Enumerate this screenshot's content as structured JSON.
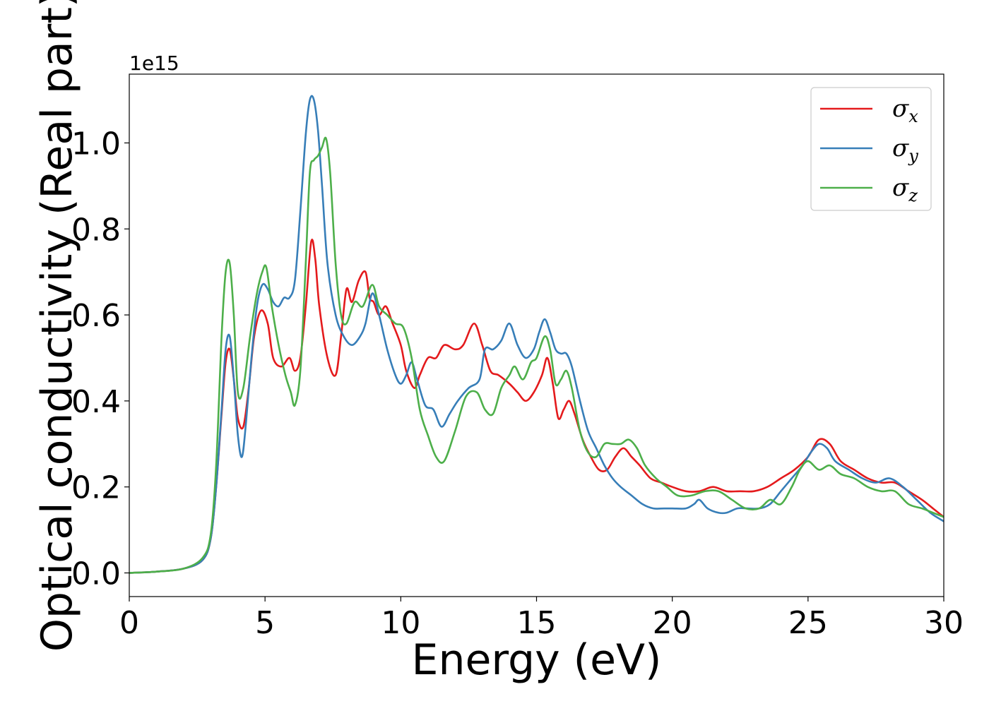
{
  "chart_data": {
    "type": "line",
    "title": "",
    "xlabel": "Energy (eV)",
    "ylabel": "Optical conductivity (Real part)",
    "y_offset_text": "1e15",
    "y_scale": 1000000000000000.0,
    "xlim": [
      0,
      30
    ],
    "ylim": [
      -0.055,
      1.16
    ],
    "xticks": [
      0,
      5,
      10,
      15,
      20,
      25,
      30
    ],
    "xtick_labels": [
      "0",
      "5",
      "10",
      "15",
      "20",
      "25",
      "30"
    ],
    "yticks": [
      0.0,
      0.2,
      0.4,
      0.6,
      0.8,
      1.0
    ],
    "ytick_labels": [
      "0.0",
      "0.2",
      "0.4",
      "0.6",
      "0.8",
      "1.0"
    ],
    "grid": false,
    "legend_position": "top-right",
    "series": [
      {
        "name": "σx",
        "legend_symbol": "σ",
        "legend_sub": "x",
        "color": "#e41a1c",
        "x": [
          0,
          1,
          2,
          2.7,
          3.0,
          3.2,
          3.4,
          3.55,
          3.7,
          3.85,
          4.0,
          4.2,
          4.4,
          4.6,
          4.85,
          5.1,
          5.3,
          5.6,
          5.9,
          6.1,
          6.3,
          6.5,
          6.7,
          6.85,
          7.0,
          7.3,
          7.6,
          7.8,
          8.0,
          8.2,
          8.45,
          8.7,
          8.85,
          9.0,
          9.2,
          9.45,
          9.7,
          10.0,
          10.2,
          10.5,
          10.7,
          11.0,
          11.3,
          11.6,
          12.0,
          12.3,
          12.7,
          13.0,
          13.3,
          13.6,
          14.0,
          14.3,
          14.6,
          14.9,
          15.2,
          15.4,
          15.6,
          15.8,
          16.0,
          16.2,
          16.4,
          16.7,
          17.0,
          17.3,
          17.6,
          17.9,
          18.2,
          18.5,
          18.8,
          19.2,
          19.6,
          20.0,
          20.5,
          21.0,
          21.5,
          22.0,
          22.5,
          23.0,
          23.5,
          24.0,
          24.5,
          25.0,
          25.4,
          25.8,
          26.2,
          26.7,
          27.2,
          27.7,
          28.2,
          28.7,
          29.2,
          29.6,
          30.0
        ],
        "y": [
          0.0,
          0.003,
          0.01,
          0.03,
          0.08,
          0.2,
          0.37,
          0.49,
          0.52,
          0.45,
          0.36,
          0.34,
          0.43,
          0.55,
          0.61,
          0.58,
          0.5,
          0.48,
          0.5,
          0.47,
          0.5,
          0.62,
          0.77,
          0.73,
          0.62,
          0.5,
          0.46,
          0.55,
          0.66,
          0.63,
          0.68,
          0.7,
          0.64,
          0.63,
          0.6,
          0.62,
          0.58,
          0.53,
          0.47,
          0.43,
          0.46,
          0.5,
          0.5,
          0.53,
          0.52,
          0.53,
          0.58,
          0.53,
          0.47,
          0.46,
          0.44,
          0.42,
          0.4,
          0.42,
          0.46,
          0.5,
          0.44,
          0.36,
          0.38,
          0.4,
          0.37,
          0.31,
          0.27,
          0.24,
          0.24,
          0.27,
          0.29,
          0.27,
          0.25,
          0.22,
          0.21,
          0.2,
          0.19,
          0.19,
          0.2,
          0.19,
          0.19,
          0.19,
          0.2,
          0.22,
          0.24,
          0.27,
          0.31,
          0.3,
          0.26,
          0.24,
          0.22,
          0.21,
          0.21,
          0.19,
          0.17,
          0.15,
          0.13
        ]
      },
      {
        "name": "σy",
        "legend_symbol": "σ",
        "legend_sub": "y",
        "color": "#377eb8",
        "x": [
          0,
          1,
          2,
          2.7,
          3.0,
          3.2,
          3.4,
          3.55,
          3.7,
          3.85,
          4.0,
          4.15,
          4.3,
          4.5,
          4.7,
          4.9,
          5.1,
          5.3,
          5.5,
          5.7,
          5.9,
          6.1,
          6.3,
          6.5,
          6.65,
          6.8,
          6.95,
          7.1,
          7.3,
          7.6,
          7.9,
          8.2,
          8.5,
          8.7,
          8.95,
          9.2,
          9.5,
          9.8,
          10.0,
          10.2,
          10.4,
          10.6,
          10.9,
          11.2,
          11.5,
          11.8,
          12.1,
          12.5,
          12.9,
          13.1,
          13.4,
          13.7,
          14.0,
          14.3,
          14.6,
          14.9,
          15.1,
          15.3,
          15.5,
          15.7,
          15.9,
          16.1,
          16.3,
          16.6,
          16.9,
          17.2,
          17.5,
          17.8,
          18.1,
          18.5,
          18.9,
          19.3,
          19.7,
          20.0,
          20.5,
          20.8,
          21.0,
          21.3,
          21.7,
          22.0,
          22.4,
          22.8,
          23.2,
          23.6,
          24.0,
          24.4,
          24.8,
          25.1,
          25.4,
          25.7,
          26.0,
          26.5,
          27.0,
          27.5,
          28.0,
          28.5,
          29.0,
          29.5,
          30.0
        ],
        "y": [
          0.0,
          0.003,
          0.01,
          0.03,
          0.08,
          0.2,
          0.38,
          0.52,
          0.55,
          0.45,
          0.32,
          0.27,
          0.35,
          0.5,
          0.62,
          0.67,
          0.66,
          0.63,
          0.62,
          0.64,
          0.64,
          0.68,
          0.84,
          1.02,
          1.1,
          1.1,
          1.03,
          0.9,
          0.72,
          0.6,
          0.55,
          0.53,
          0.55,
          0.58,
          0.65,
          0.6,
          0.52,
          0.46,
          0.44,
          0.46,
          0.49,
          0.45,
          0.39,
          0.38,
          0.34,
          0.37,
          0.4,
          0.43,
          0.45,
          0.52,
          0.52,
          0.54,
          0.58,
          0.53,
          0.5,
          0.52,
          0.56,
          0.59,
          0.56,
          0.52,
          0.51,
          0.51,
          0.48,
          0.4,
          0.33,
          0.29,
          0.25,
          0.22,
          0.2,
          0.18,
          0.16,
          0.15,
          0.15,
          0.15,
          0.15,
          0.16,
          0.17,
          0.15,
          0.14,
          0.14,
          0.15,
          0.15,
          0.15,
          0.16,
          0.19,
          0.22,
          0.25,
          0.28,
          0.3,
          0.29,
          0.26,
          0.24,
          0.22,
          0.21,
          0.22,
          0.2,
          0.17,
          0.14,
          0.12
        ]
      },
      {
        "name": "σz",
        "legend_symbol": "σ",
        "legend_sub": "z",
        "color": "#4daf4a",
        "x": [
          0,
          1,
          2,
          2.7,
          3.0,
          3.2,
          3.4,
          3.55,
          3.7,
          3.85,
          4.0,
          4.2,
          4.45,
          4.7,
          4.9,
          5.05,
          5.25,
          5.5,
          5.75,
          5.95,
          6.1,
          6.3,
          6.5,
          6.65,
          6.8,
          6.95,
          7.1,
          7.25,
          7.4,
          7.6,
          7.8,
          8.0,
          8.3,
          8.6,
          8.95,
          9.2,
          9.5,
          9.8,
          10.1,
          10.4,
          10.7,
          11.0,
          11.3,
          11.6,
          12.0,
          12.4,
          12.8,
          13.1,
          13.4,
          13.7,
          14.0,
          14.2,
          14.5,
          14.8,
          15.0,
          15.3,
          15.5,
          15.7,
          15.9,
          16.1,
          16.3,
          16.6,
          16.9,
          17.2,
          17.5,
          17.8,
          18.1,
          18.4,
          18.7,
          19.0,
          19.4,
          19.8,
          20.2,
          20.7,
          21.2,
          21.7,
          22.2,
          22.7,
          23.2,
          23.6,
          24.0,
          24.4,
          24.7,
          25.0,
          25.4,
          25.8,
          26.2,
          26.7,
          27.2,
          27.7,
          28.2,
          28.7,
          29.2,
          29.6,
          30.0
        ],
        "y": [
          0.0,
          0.003,
          0.01,
          0.035,
          0.09,
          0.25,
          0.55,
          0.7,
          0.72,
          0.6,
          0.42,
          0.43,
          0.55,
          0.65,
          0.7,
          0.71,
          0.62,
          0.53,
          0.46,
          0.42,
          0.39,
          0.47,
          0.72,
          0.93,
          0.96,
          0.97,
          0.99,
          1.01,
          0.93,
          0.72,
          0.6,
          0.58,
          0.63,
          0.62,
          0.67,
          0.62,
          0.6,
          0.58,
          0.57,
          0.5,
          0.38,
          0.32,
          0.27,
          0.26,
          0.33,
          0.41,
          0.42,
          0.38,
          0.37,
          0.43,
          0.46,
          0.48,
          0.45,
          0.49,
          0.5,
          0.55,
          0.52,
          0.44,
          0.45,
          0.47,
          0.43,
          0.33,
          0.28,
          0.27,
          0.3,
          0.3,
          0.3,
          0.31,
          0.29,
          0.25,
          0.22,
          0.2,
          0.18,
          0.18,
          0.19,
          0.19,
          0.17,
          0.15,
          0.15,
          0.17,
          0.16,
          0.2,
          0.24,
          0.26,
          0.24,
          0.25,
          0.23,
          0.22,
          0.2,
          0.19,
          0.19,
          0.16,
          0.15,
          0.14,
          0.13
        ]
      }
    ]
  }
}
